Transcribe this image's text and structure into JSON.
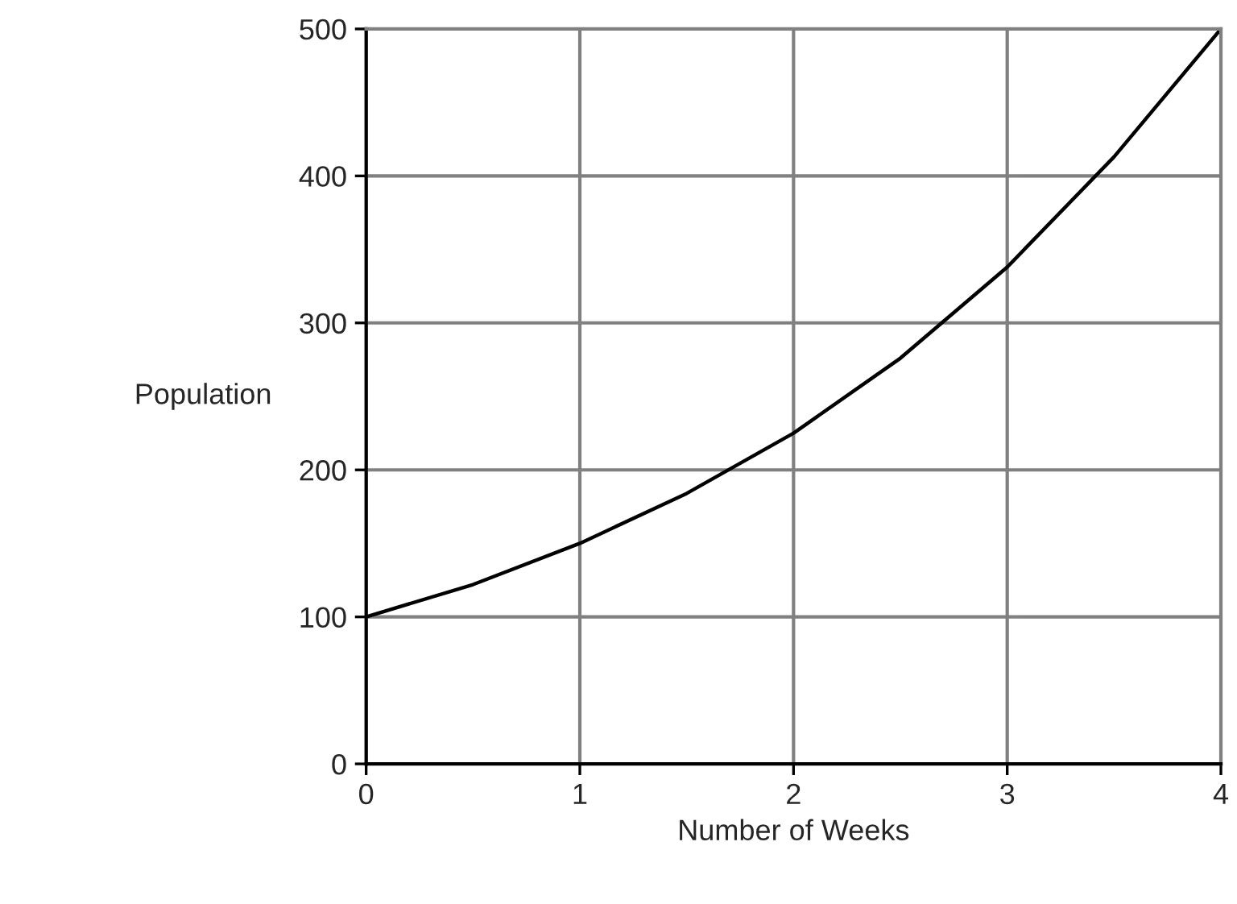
{
  "chart_data": {
    "type": "line",
    "xlabel": "Number of Weeks",
    "ylabel": "Population",
    "x": [
      0,
      0.5,
      1,
      1.5,
      2,
      2.5,
      3,
      3.5,
      4
    ],
    "series": [
      {
        "color": "#000000",
        "values": [
          100,
          122,
          150,
          184,
          225,
          276,
          338,
          413,
          500
        ]
      }
    ],
    "xlim": [
      0,
      4
    ],
    "ylim": [
      0,
      500
    ],
    "xticks": [
      0,
      1,
      2,
      3,
      4
    ],
    "yticks": [
      0,
      100,
      200,
      300,
      400,
      500
    ],
    "grid": true,
    "line_style": "solid"
  }
}
